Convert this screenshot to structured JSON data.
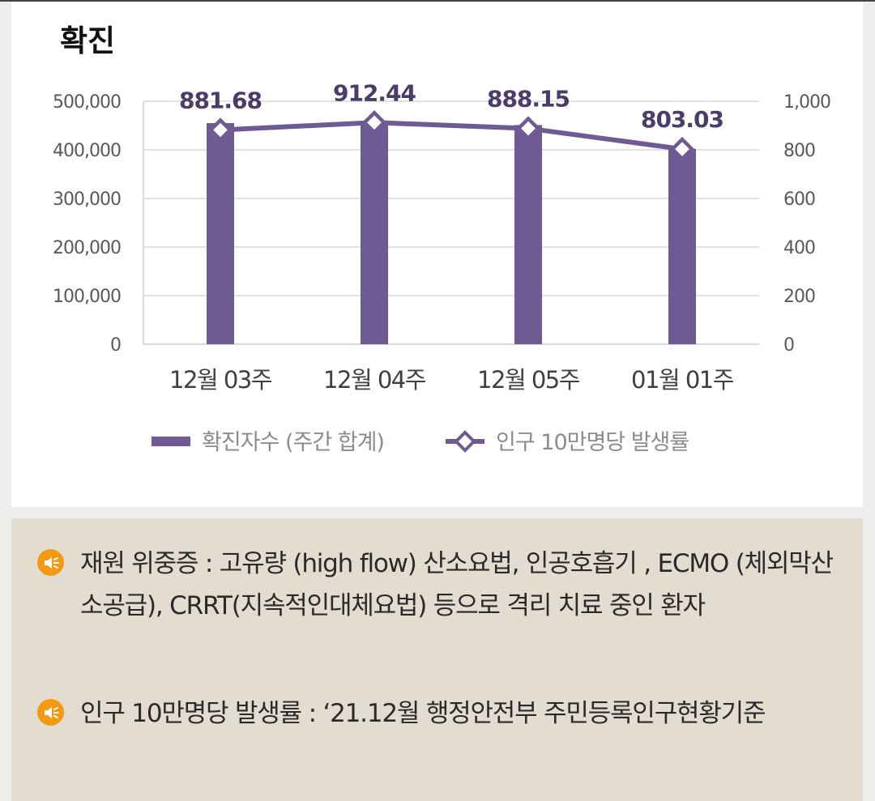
{
  "title": "확진",
  "chart_data": {
    "type": "bar",
    "categories": [
      "12월 03주",
      "12월 04주",
      "12월 05주",
      "01월 01주"
    ],
    "series": [
      {
        "name": "확진자수 (주간 합계)",
        "type": "bar",
        "axis": "left",
        "values": [
          455000,
          458000,
          451000,
          402000
        ]
      },
      {
        "name": "인구 10만명당 발생률",
        "type": "line",
        "axis": "right",
        "marker": "diamond",
        "values": [
          881.68,
          912.44,
          888.15,
          803.03
        ],
        "labels": [
          "881.68",
          "912.44",
          "888.15",
          "803.03"
        ]
      }
    ],
    "y_left": {
      "ylim": [
        0,
        500000
      ],
      "ticks": [
        0,
        100000,
        200000,
        300000,
        400000,
        500000
      ],
      "tick_labels": [
        "0",
        "100,000",
        "200,000",
        "300,000",
        "400,000",
        "500,000"
      ]
    },
    "y_right": {
      "ylim": [
        0,
        1000
      ],
      "ticks": [
        0,
        200,
        400,
        600,
        800,
        1000
      ],
      "tick_labels": [
        "0",
        "200",
        "400",
        "600",
        "800",
        "1,000"
      ]
    },
    "grid": true,
    "legend": "bottom",
    "colors": {
      "bar": "#6f5b93",
      "line": "#6f5b93",
      "grid": "#d9d9d9",
      "tick_text": "#595959",
      "label_text": "#4b3d6b"
    }
  },
  "notes": [
    {
      "icon": "speaker-icon",
      "text": "재원 위중증 : 고유량 (high flow) 산소요법, 인공호흡기 , ECMO (체외막산소공급), CRRT(지속적인대체요법) 등으로 격리 치료 중인 환자"
    },
    {
      "icon": "speaker-icon",
      "text": "인구 10만명당 발생률 : ‘21.12월 행정안전부 주민등록인구현황기준"
    }
  ],
  "colors": {
    "note_bg": "#e3ddd1",
    "icon": "#f39a12",
    "page_bg": "#eeeeec"
  }
}
